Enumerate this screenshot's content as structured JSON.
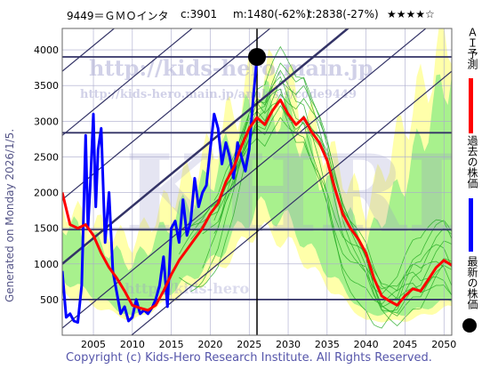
{
  "header": {
    "code_name": "9449＝ＧＭＯインタ",
    "current": "c:3901",
    "min": "m:1480(-62%)",
    "target": "t:2838(-27%)",
    "stars": "★★★★☆"
  },
  "generated": "Generated on Monday 2026/1/5.",
  "watermark": {
    "url_main": "http://kids-hero.main.jp",
    "url_sub": "http://kids-hero.main.jp/analysis/code9449",
    "url_bottom": "http://kids-hero",
    "big": "KHRI"
  },
  "footer": "Copyright (c) Kids-Hero Research Institute. All Rights Reserved.",
  "legend": {
    "ai_label": "ＡＩ予測",
    "past_label": "過去の株価",
    "latest_label": "最新の株価"
  },
  "colors": {
    "ai_prediction": "#ff0000",
    "past_price": "#0000ff",
    "latest_marker": "#000000",
    "band_light": "#ffffaa",
    "band_green": "#99ee88",
    "line_green": "#22aa22",
    "trend_line": "#333366"
  },
  "chart_data": {
    "type": "line",
    "title": "",
    "xlabel": "",
    "ylabel": "",
    "xlim": [
      2001,
      2051
    ],
    "ylim": [
      0,
      4300
    ],
    "x_ticks": [
      2005,
      2010,
      2015,
      2020,
      2025,
      2030,
      2035,
      2040,
      2045,
      2050
    ],
    "y_ticks": [
      500,
      1000,
      1500,
      2000,
      2500,
      3000,
      3500,
      4000
    ],
    "horizontal_levels": [
      3901,
      2838,
      1480,
      500
    ],
    "latest_point": {
      "x": 2026.0,
      "y": 3901
    },
    "series": [
      {
        "name": "過去の株価",
        "x": [
          2001.0,
          2001.5,
          2002.0,
          2002.5,
          2003.0,
          2003.5,
          2004.0,
          2004.3,
          2004.6,
          2005.0,
          2005.3,
          2005.6,
          2006.0,
          2006.5,
          2007.0,
          2007.5,
          2008.0,
          2008.5,
          2009.0,
          2009.5,
          2010.0,
          2010.5,
          2011.0,
          2011.5,
          2012.0,
          2012.5,
          2013.0,
          2013.5,
          2014.0,
          2014.5,
          2015.0,
          2015.5,
          2016.0,
          2016.5,
          2017.0,
          2017.5,
          2018.0,
          2018.5,
          2019.0,
          2019.5,
          2020.0,
          2020.5,
          2021.0,
          2021.5,
          2022.0,
          2022.5,
          2023.0,
          2023.5,
          2024.0,
          2024.5,
          2025.0,
          2025.5,
          2026.0
        ],
        "y": [
          900,
          250,
          300,
          200,
          180,
          700,
          2800,
          1500,
          2100,
          3100,
          1800,
          2600,
          2900,
          1300,
          2000,
          900,
          600,
          300,
          400,
          200,
          250,
          500,
          300,
          350,
          300,
          380,
          500,
          700,
          1100,
          400,
          1500,
          1600,
          1300,
          1900,
          1400,
          1600,
          2200,
          1800,
          2000,
          2100,
          2600,
          3100,
          2900,
          2400,
          2700,
          2500,
          2200,
          2700,
          2500,
          2300,
          2600,
          3300,
          3901
        ]
      },
      {
        "name": "ＡＩ予測",
        "x": [
          2001.0,
          2002.0,
          2003.0,
          2004.0,
          2005.0,
          2006.0,
          2007.0,
          2008.0,
          2009.0,
          2010.0,
          2011.0,
          2012.0,
          2013.0,
          2014.0,
          2015.0,
          2016.0,
          2017.0,
          2018.0,
          2019.0,
          2020.0,
          2021.0,
          2022.0,
          2023.0,
          2024.0,
          2025.0,
          2026.0,
          2027.0,
          2028.0,
          2029.0,
          2030.0,
          2031.0,
          2032.0,
          2033.0,
          2034.0,
          2035.0,
          2036.0,
          2037.0,
          2038.0,
          2039.0,
          2040.0,
          2041.0,
          2042.0,
          2043.0,
          2044.0,
          2045.0,
          2046.0,
          2047.0,
          2048.0,
          2049.0,
          2050.0,
          2051.0
        ],
        "y": [
          2000,
          1550,
          1500,
          1550,
          1400,
          1150,
          950,
          800,
          620,
          420,
          380,
          350,
          420,
          620,
          850,
          1050,
          1200,
          1350,
          1500,
          1700,
          1850,
          2150,
          2350,
          2650,
          2900,
          3050,
          2950,
          3150,
          3300,
          3100,
          2950,
          3050,
          2850,
          2700,
          2450,
          2050,
          1700,
          1500,
          1350,
          1150,
          800,
          550,
          480,
          420,
          550,
          650,
          620,
          780,
          950,
          1050,
          980
        ]
      }
    ],
    "bands": [
      {
        "name": "light",
        "x": [
          2001,
          2010,
          2020,
          2026,
          2030,
          2035,
          2040,
          2045,
          2051
        ],
        "low": [
          600,
          200,
          800,
          1500,
          1300,
          700,
          200,
          200,
          400
        ],
        "high": [
          1800,
          1300,
          2600,
          3700,
          3500,
          2600,
          1800,
          3000,
          4300
        ]
      },
      {
        "name": "green",
        "x": [
          2001,
          2010,
          2020,
          2026,
          2030,
          2035,
          2040,
          2045,
          2051
        ],
        "low": [
          800,
          250,
          1000,
          1800,
          1600,
          900,
          300,
          300,
          500
        ],
        "high": [
          1600,
          1000,
          2200,
          3300,
          3100,
          2100,
          1300,
          2200,
          3800
        ]
      }
    ]
  }
}
